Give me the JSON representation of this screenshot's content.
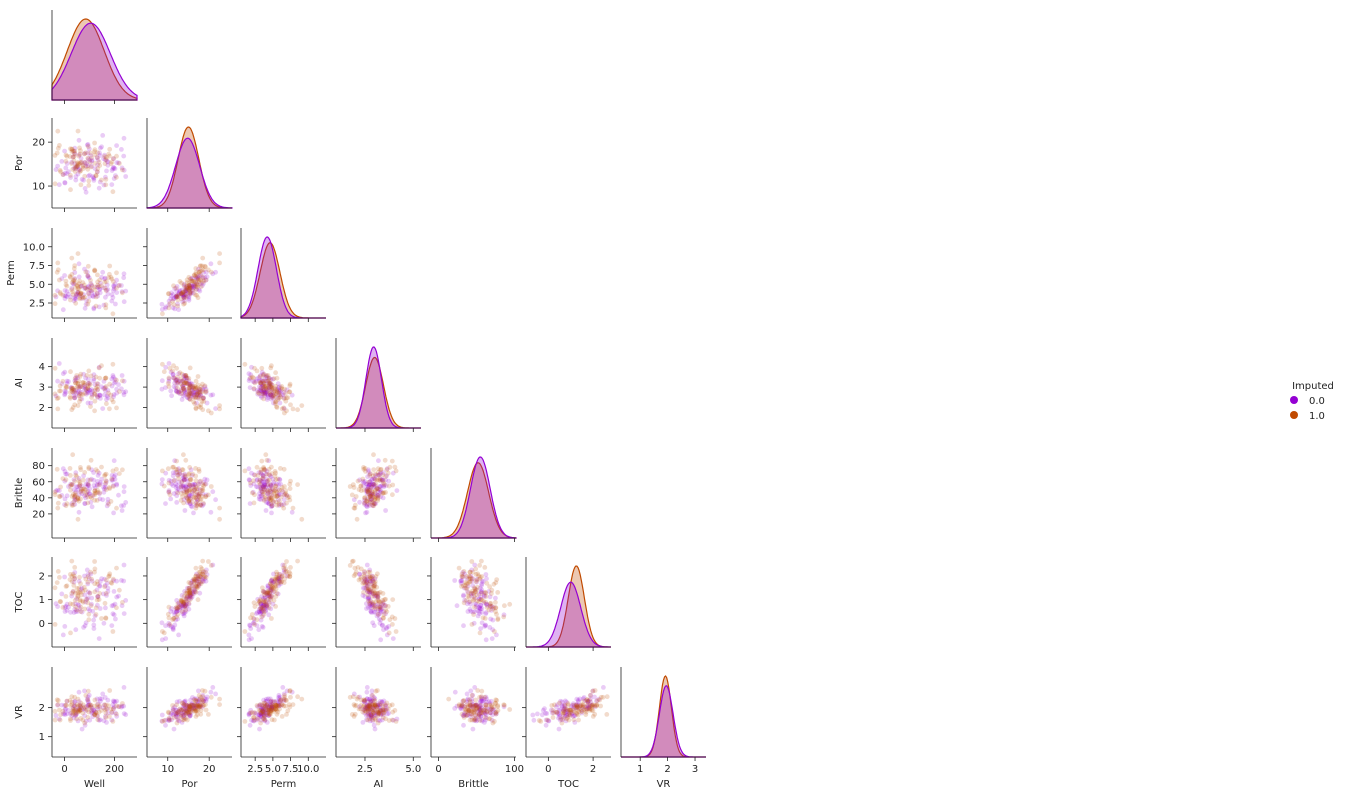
{
  "chart_data": {
    "type": "scatter",
    "subtype": "pairplot-corner",
    "title": "",
    "variables": [
      {
        "name": "Well",
        "range": [
          -50,
          290
        ],
        "ticks": [
          0,
          200
        ],
        "tick_labels": [
          "0",
          "200"
        ]
      },
      {
        "name": "Por",
        "range": [
          5.0,
          25.5
        ],
        "ticks": [
          10,
          20
        ],
        "tick_labels": [
          "10",
          "20"
        ]
      },
      {
        "name": "Perm",
        "range": [
          0.5,
          12.5
        ],
        "ticks": [
          2.5,
          5.0,
          7.5,
          10.0
        ],
        "tick_labels": [
          "2.5",
          "5.0",
          "7.5",
          "10.0"
        ]
      },
      {
        "name": "AI",
        "range": [
          1.0,
          5.4
        ],
        "ticks": [
          2,
          3,
          4
        ],
        "tick_labels": [
          "2",
          "3",
          "4"
        ],
        "x_ticks": [
          2.5,
          5.0
        ],
        "x_tick_labels": [
          "2.5",
          "5.0"
        ]
      },
      {
        "name": "Brittle",
        "range": [
          -10,
          102
        ],
        "ticks": [
          20,
          40,
          60,
          80
        ],
        "tick_labels": [
          "20",
          "40",
          "60",
          "80"
        ],
        "x_ticks": [
          0,
          100
        ],
        "x_tick_labels": [
          "0",
          "100"
        ]
      },
      {
        "name": "TOC",
        "range": [
          -1.0,
          2.8
        ],
        "ticks": [
          0,
          1,
          2
        ],
        "tick_labels": [
          "0",
          "1",
          "2"
        ],
        "x_ticks": [
          0,
          2
        ],
        "x_tick_labels": [
          "0",
          "2"
        ]
      },
      {
        "name": "VR",
        "range": [
          0.3,
          3.4
        ],
        "ticks": [
          1,
          2
        ],
        "tick_labels": [
          "1",
          "2"
        ],
        "x_ticks": [
          1,
          2,
          3
        ],
        "x_tick_labels": [
          "1",
          "2",
          "3"
        ]
      }
    ],
    "legend": {
      "title": "Imputed",
      "placement": "right",
      "entries": [
        {
          "label": "0.0",
          "color": "#9400d3"
        },
        {
          "label": "1.0",
          "color": "#c04a00"
        }
      ]
    },
    "scatter_alpha": 0.2,
    "kde_fill_alpha": 0.3,
    "kde": {
      "Well": {
        "0.0": {
          "mean": 105,
          "sd": 78
        },
        "1.0": {
          "mean": 85,
          "sd": 74
        }
      },
      "Por": {
        "0.0": {
          "mean": 14.8,
          "sd": 2.9
        },
        "1.0": {
          "mean": 15.0,
          "sd": 2.5
        }
      },
      "Perm": {
        "0.0": {
          "mean": 4.2,
          "sd": 1.3
        },
        "1.0": {
          "mean": 4.6,
          "sd": 1.4
        }
      },
      "AI": {
        "0.0": {
          "mean": 2.95,
          "sd": 0.4
        },
        "1.0": {
          "mean": 3.0,
          "sd": 0.46
        }
      },
      "Brittle": {
        "0.0": {
          "mean": 55,
          "sd": 13
        },
        "1.0": {
          "mean": 52,
          "sd": 14
        }
      },
      "TOC": {
        "0.0": {
          "mean": 1.0,
          "sd": 0.45
        },
        "1.0": {
          "mean": 1.25,
          "sd": 0.36
        }
      },
      "VR": {
        "0.0": {
          "mean": 1.95,
          "sd": 0.25
        },
        "1.0": {
          "mean": 1.92,
          "sd": 0.22
        }
      }
    },
    "pair_correlations": {
      "Por|Well": 0.0,
      "Perm|Well": 0.0,
      "Perm|Por": 0.8,
      "AI|Well": 0.0,
      "AI|Por": -0.45,
      "AI|Perm": -0.3,
      "Brittle|Well": 0.0,
      "Brittle|Por": -0.1,
      "Brittle|Perm": -0.2,
      "Brittle|AI": 0.0,
      "TOC|Well": 0.1,
      "TOC|Por": 0.75,
      "TOC|Perm": 0.55,
      "TOC|AI": -0.5,
      "TOC|Brittle": -0.2,
      "VR|Well": 0.0,
      "VR|Por": 0.2,
      "VR|Perm": 0.3,
      "VR|AI": 0.45,
      "VR|Brittle": 0.3,
      "VR|TOC": 0.4
    }
  }
}
